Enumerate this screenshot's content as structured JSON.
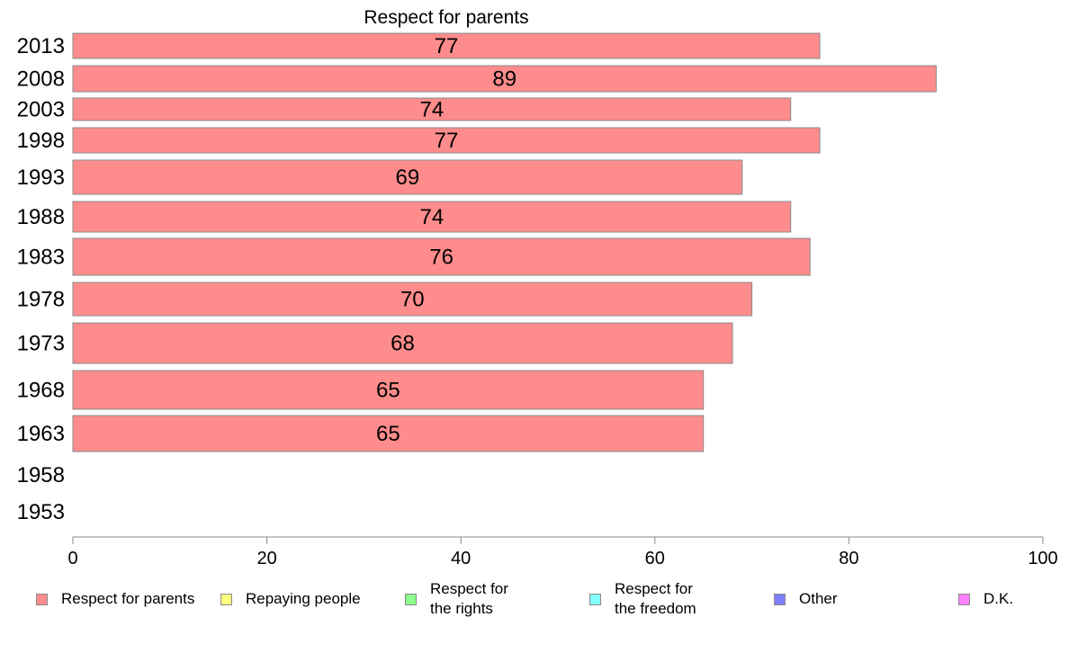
{
  "chart_data": {
    "type": "bar",
    "orientation": "horizontal",
    "title": "Respect for parents",
    "categories": [
      "2013",
      "2008",
      "2003",
      "1998",
      "1993",
      "1988",
      "1983",
      "1978",
      "1973",
      "1968",
      "1963",
      "1958",
      "1953"
    ],
    "values": [
      77,
      89,
      74,
      77,
      69,
      74,
      76,
      70,
      68,
      65,
      65,
      null,
      null
    ],
    "value_labels": [
      "77",
      "89",
      "74",
      "77",
      "69",
      "74",
      "76",
      "70",
      "68",
      "65",
      "65",
      "",
      ""
    ],
    "xlim": [
      0,
      100
    ],
    "x_ticks": [
      "0",
      "20",
      "40",
      "60",
      "80",
      "100"
    ],
    "grid": false,
    "legend_position": "bottom",
    "bar_color": "#ff8c8c",
    "legend": [
      {
        "label": "Respect for parents",
        "color": "#ff8c8c"
      },
      {
        "label": "Repaying people",
        "color": "#ffff80"
      },
      {
        "label": "Respect for\nthe rights",
        "color": "#8cff8c"
      },
      {
        "label": "Respect for\nthe freedom",
        "color": "#80ffff"
      },
      {
        "label": "Other",
        "color": "#8080ff"
      },
      {
        "label": "D.K.",
        "color": "#ff80ff"
      }
    ]
  }
}
